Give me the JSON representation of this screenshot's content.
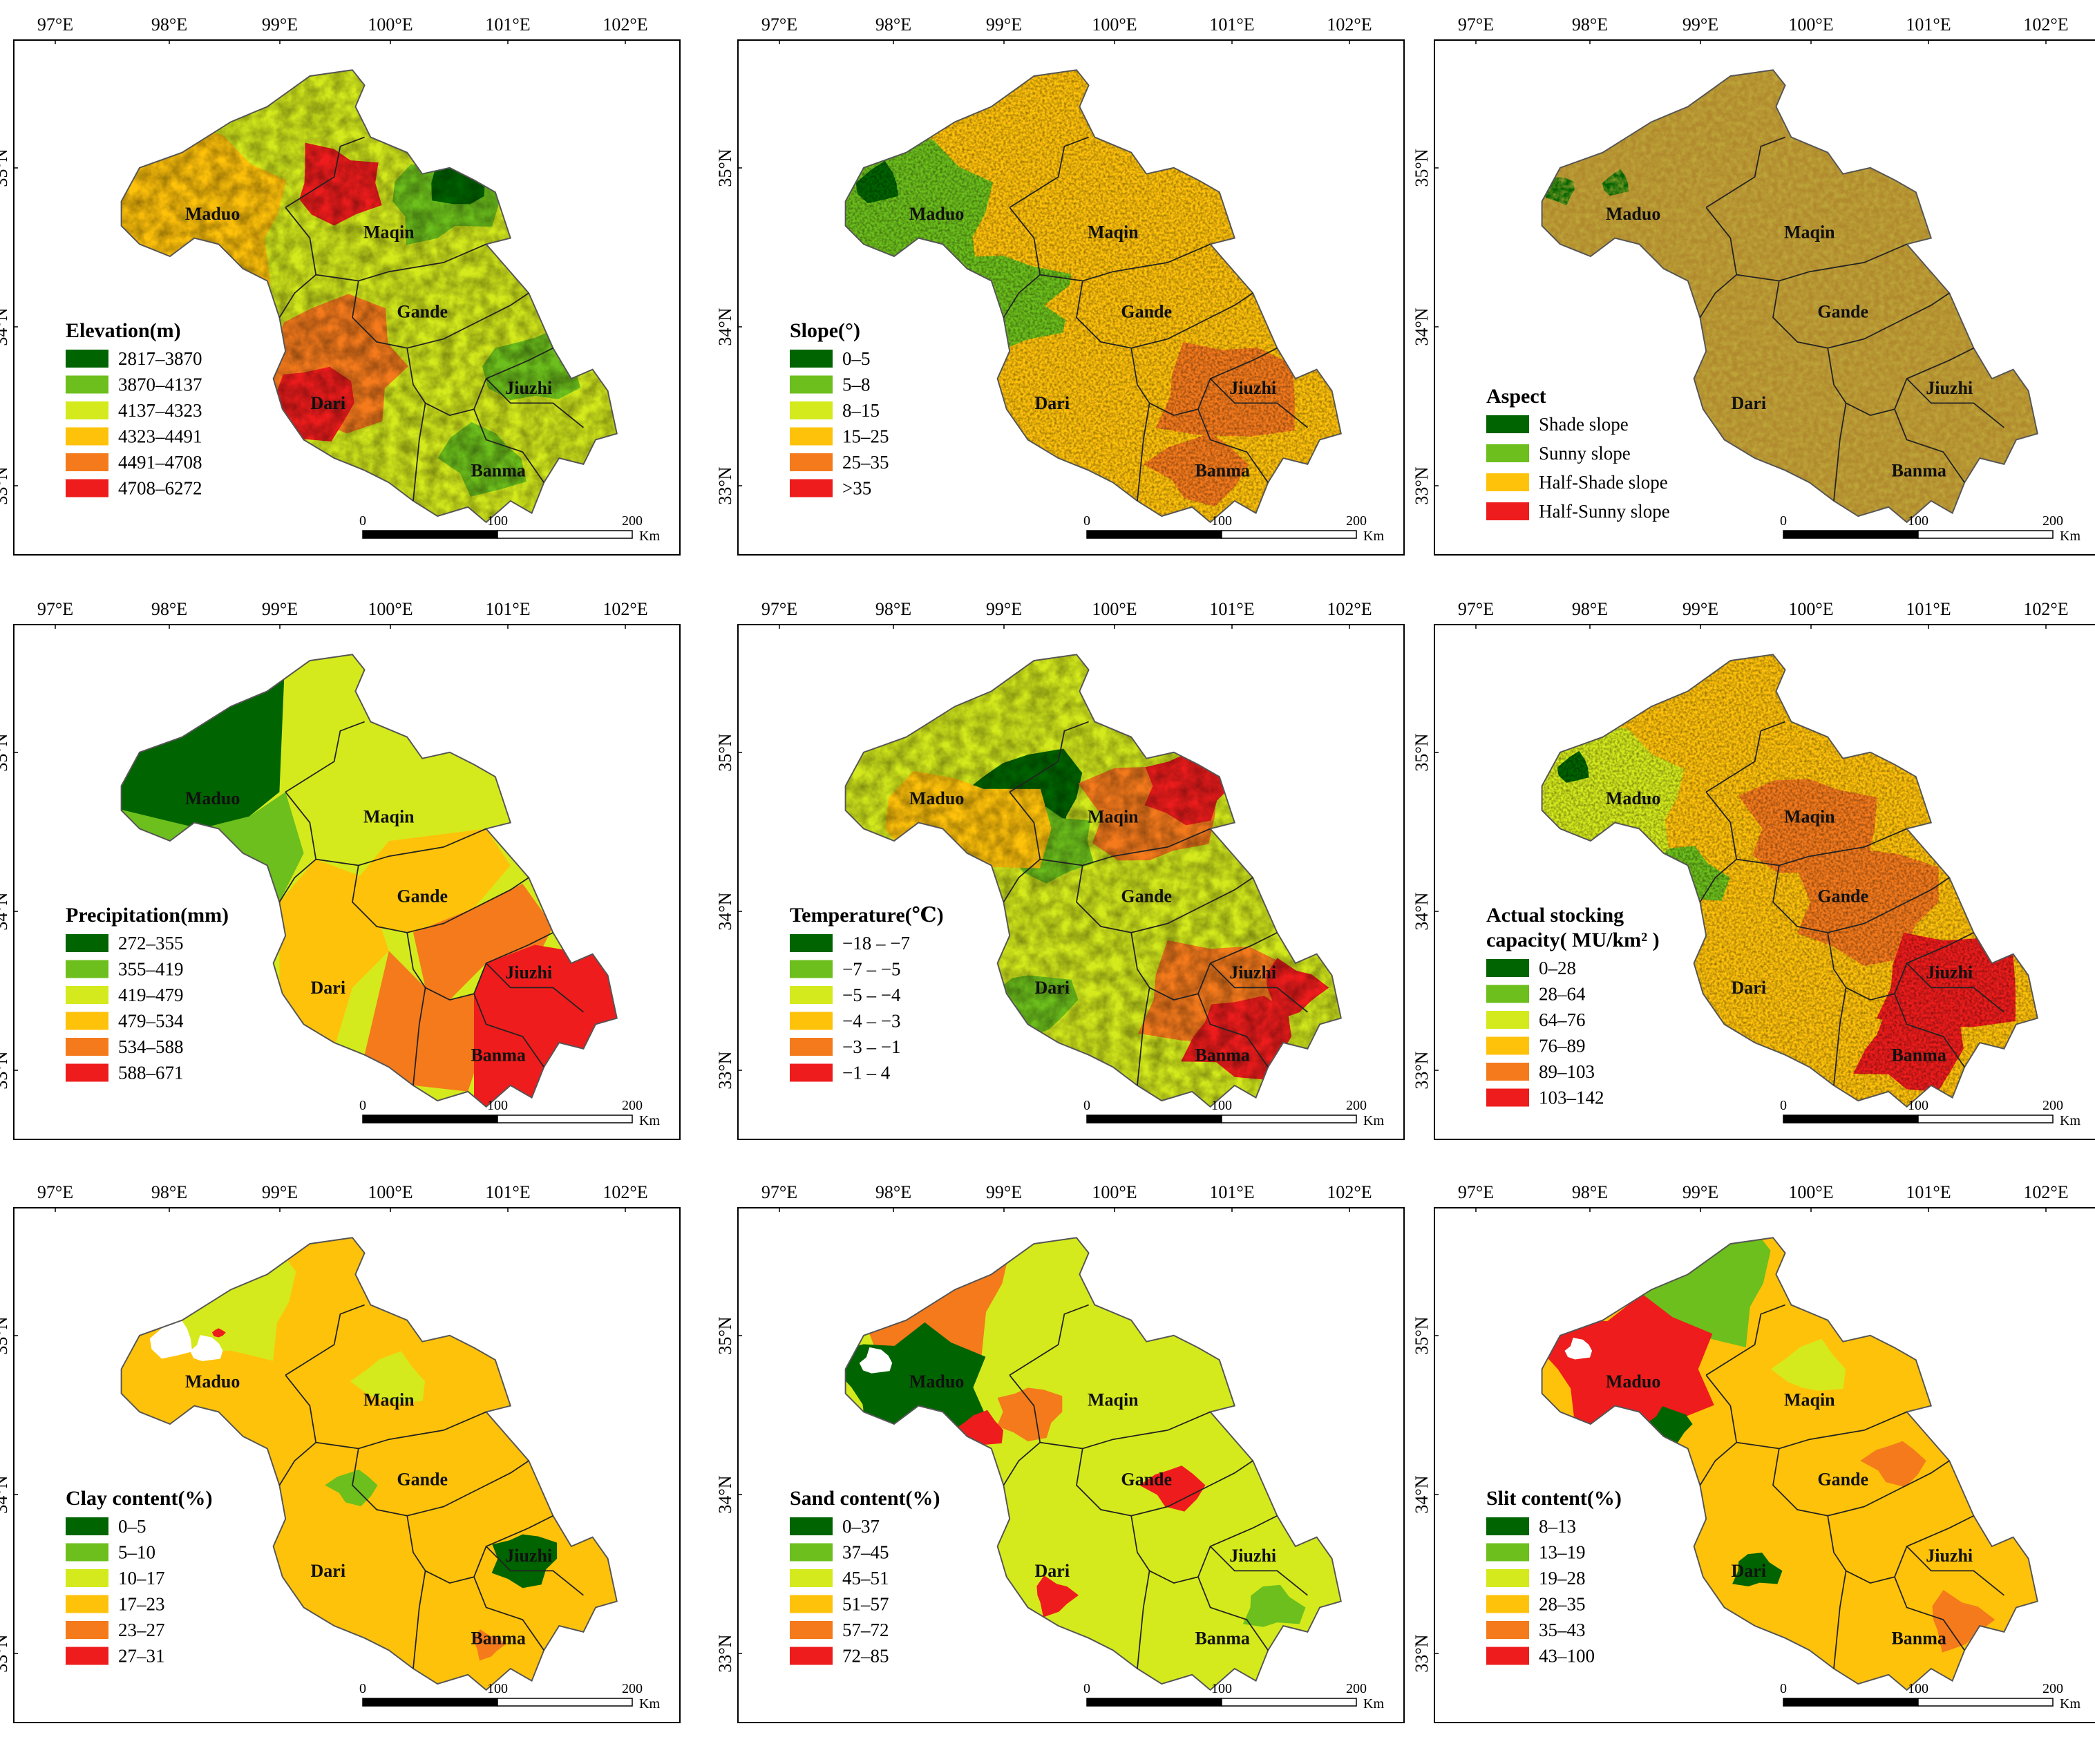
{
  "figure": {
    "lon_labels": [
      "97°E",
      "98°E",
      "99°E",
      "100°E",
      "101°E",
      "102°E"
    ],
    "lat_labels": [
      "35°N",
      "34°N",
      "33°N"
    ],
    "scale_bar": {
      "ticks": [
        "0",
        "100",
        "200"
      ],
      "unit": "Km"
    },
    "counties": [
      "Maduo",
      "Maqin",
      "Gande",
      "Dari",
      "Jiuzhi",
      "Banma"
    ],
    "panels": [
      {
        "id": "elevation",
        "legend_title": "Elevation(m)",
        "palette": [
          "#006400",
          "#6cbf1c",
          "#d4ea1c",
          "#ffc20a",
          "#f47a1c",
          "#ee1c1c"
        ],
        "classes": [
          "2817–3870",
          "3870–4137",
          "4137–4323",
          "4323–4491",
          "4491–4708",
          "4708–6272"
        ],
        "texture": "relief"
      },
      {
        "id": "slope",
        "legend_title": "Slope(°)",
        "palette": [
          "#006400",
          "#6cbf1c",
          "#d4ea1c",
          "#ffc20a",
          "#f47a1c",
          "#ee1c1c"
        ],
        "classes": [
          "0–5",
          "5–8",
          "8–15",
          "15–25",
          "25–35",
          ">35"
        ],
        "texture": "speckle"
      },
      {
        "id": "aspect",
        "legend_title": "Aspect",
        "palette": [
          "#006400",
          "#6cbf1c",
          "#ffc20a",
          "#ee1c1c"
        ],
        "classes": [
          "Shade slope",
          "Sunny slope",
          "Half-Shade slope",
          "Half-Sunny slope"
        ],
        "texture": "aspect"
      },
      {
        "id": "precipitation",
        "legend_title": "Precipitation(mm)",
        "palette": [
          "#006400",
          "#6cbf1c",
          "#d4ea1c",
          "#ffc20a",
          "#f47a1c",
          "#ee1c1c"
        ],
        "classes": [
          "272–355",
          "355–419",
          "419–479",
          "479–534",
          "534–588",
          "588–671"
        ],
        "texture": "smooth"
      },
      {
        "id": "temperature",
        "legend_title": "Temperature(℃)",
        "palette": [
          "#006400",
          "#6cbf1c",
          "#d4ea1c",
          "#ffc20a",
          "#f47a1c",
          "#ee1c1c"
        ],
        "classes": [
          "−18 – −7",
          "−7 – −5",
          "−5 – −4",
          "−4 – −3",
          "−3 – −1",
          "−1 – 4"
        ],
        "texture": "relief"
      },
      {
        "id": "stocking",
        "legend_title": "Actual stocking",
        "legend_title2": "capacity( MU/km² )",
        "palette": [
          "#006400",
          "#6cbf1c",
          "#d4ea1c",
          "#ffc20a",
          "#f47a1c",
          "#ee1c1c"
        ],
        "classes": [
          "0–28",
          "28–64",
          "64–76",
          "76–89",
          "89–103",
          "103–142"
        ],
        "texture": "speckle"
      },
      {
        "id": "clay",
        "legend_title": "Clay content(%)",
        "palette": [
          "#006400",
          "#6cbf1c",
          "#d4ea1c",
          "#ffc20a",
          "#f47a1c",
          "#ee1c1c"
        ],
        "classes": [
          "0–5",
          "5–10",
          "10–17",
          "17–23",
          "23–27",
          "27–31"
        ],
        "texture": "patches"
      },
      {
        "id": "sand",
        "legend_title": "Sand content(%)",
        "palette": [
          "#006400",
          "#6cbf1c",
          "#d4ea1c",
          "#ffc20a",
          "#f47a1c",
          "#ee1c1c"
        ],
        "classes": [
          "0–37",
          "37–45",
          "45–51",
          "51–57",
          "57–72",
          "72–85"
        ],
        "texture": "patches"
      },
      {
        "id": "silt",
        "legend_title": "Slit content(%)",
        "palette": [
          "#006400",
          "#6cbf1c",
          "#d4ea1c",
          "#ffc20a",
          "#f47a1c",
          "#ee1c1c"
        ],
        "classes": [
          "8–13",
          "13–19",
          "19–28",
          "28–35",
          "35–43",
          "43–100"
        ],
        "texture": "patches"
      }
    ]
  }
}
